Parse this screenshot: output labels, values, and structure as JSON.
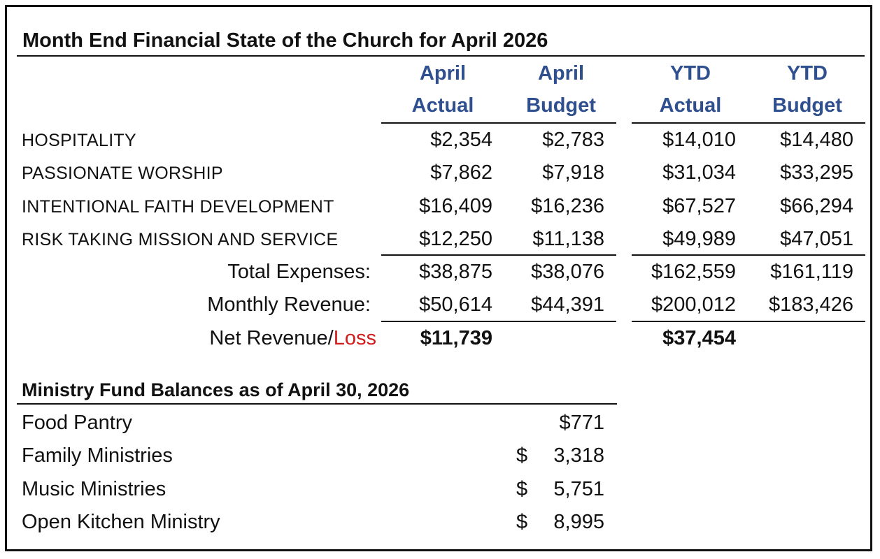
{
  "title": "Month End Financial State of the Church for April 2026",
  "columns": [
    {
      "line1": "April",
      "line2": "Actual"
    },
    {
      "line1": "April",
      "line2": "Budget"
    },
    {
      "line1": "YTD",
      "line2": "Actual"
    },
    {
      "line1": "YTD",
      "line2": "Budget"
    }
  ],
  "rows": [
    {
      "label": "HOSPITALITY",
      "values": [
        "$2,354",
        "$2,783",
        "$14,010",
        "$14,480"
      ]
    },
    {
      "label": "PASSIONATE WORSHIP",
      "values": [
        "$7,862",
        "$7,918",
        "$31,034",
        "$33,295"
      ]
    },
    {
      "label": "INTENTIONAL FAITH DEVELOPMENT",
      "values": [
        "$16,409",
        "$16,236",
        "$67,527",
        "$66,294"
      ]
    },
    {
      "label": "RISK TAKING MISSION AND SERVICE",
      "values": [
        "$12,250",
        "$11,138",
        "$49,989",
        "$47,051"
      ]
    }
  ],
  "totals": [
    {
      "label": "Total Expenses:",
      "values": [
        "$38,875",
        "$38,076",
        "$162,559",
        "$161,119"
      ]
    },
    {
      "label": "Monthly Revenue:",
      "values": [
        "$50,614",
        "$44,391",
        "$200,012",
        "$183,426"
      ]
    }
  ],
  "net": {
    "label_prefix": "Net Revenue/",
    "label_loss": "Loss",
    "april_actual": "$11,739",
    "ytd_actual": "$37,454",
    "loss_color": "#d11a1a"
  },
  "funds": {
    "title": "Ministry Fund Balances as of April 30, 2026",
    "items": [
      {
        "name": "Food Pantry",
        "currency": "",
        "amount": "$771"
      },
      {
        "name": "Family Ministries",
        "currency": "$",
        "amount": "3,318"
      },
      {
        "name": "Music Ministries",
        "currency": "$",
        "amount": "5,751"
      },
      {
        "name": "Open Kitchen Ministry",
        "currency": "$",
        "amount": "8,995"
      }
    ]
  },
  "colors": {
    "header_blue": "#2f4f8f",
    "text": "#111111"
  }
}
